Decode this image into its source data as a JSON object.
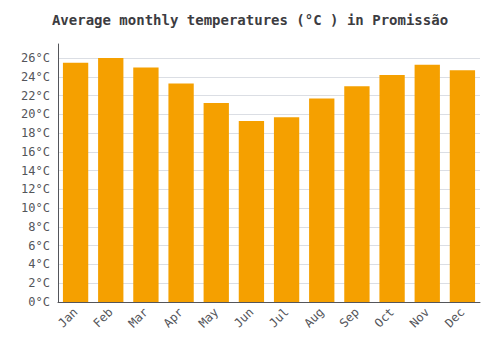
{
  "chart_data": {
    "type": "bar",
    "title": "Average monthly temperatures (°C ) in Promissão",
    "categories": [
      "Jan",
      "Feb",
      "Mar",
      "Apr",
      "May",
      "Jun",
      "Jul",
      "Aug",
      "Sep",
      "Oct",
      "Nov",
      "Dec"
    ],
    "values": [
      25.5,
      26.0,
      25.0,
      23.3,
      21.2,
      19.3,
      19.7,
      21.7,
      23.0,
      24.2,
      25.3,
      24.7
    ],
    "color": "#F5A000",
    "ylim": [
      0,
      27.5
    ],
    "yticks": [
      {
        "value": 0,
        "label": "0°C"
      },
      {
        "value": 2,
        "label": "2°C"
      },
      {
        "value": 4,
        "label": "4°C"
      },
      {
        "value": 6,
        "label": "6°C"
      },
      {
        "value": 8,
        "label": "8°C"
      },
      {
        "value": 10,
        "label": "10°C"
      },
      {
        "value": 12,
        "label": "12°C"
      },
      {
        "value": 14,
        "label": "14°C"
      },
      {
        "value": 16,
        "label": "16°C"
      },
      {
        "value": 18,
        "label": "18°C"
      },
      {
        "value": 20,
        "label": "20°C"
      },
      {
        "value": 22,
        "label": "22°C"
      },
      {
        "value": 24,
        "label": "24°C"
      },
      {
        "value": 26,
        "label": "26°C"
      }
    ],
    "grid": true
  }
}
